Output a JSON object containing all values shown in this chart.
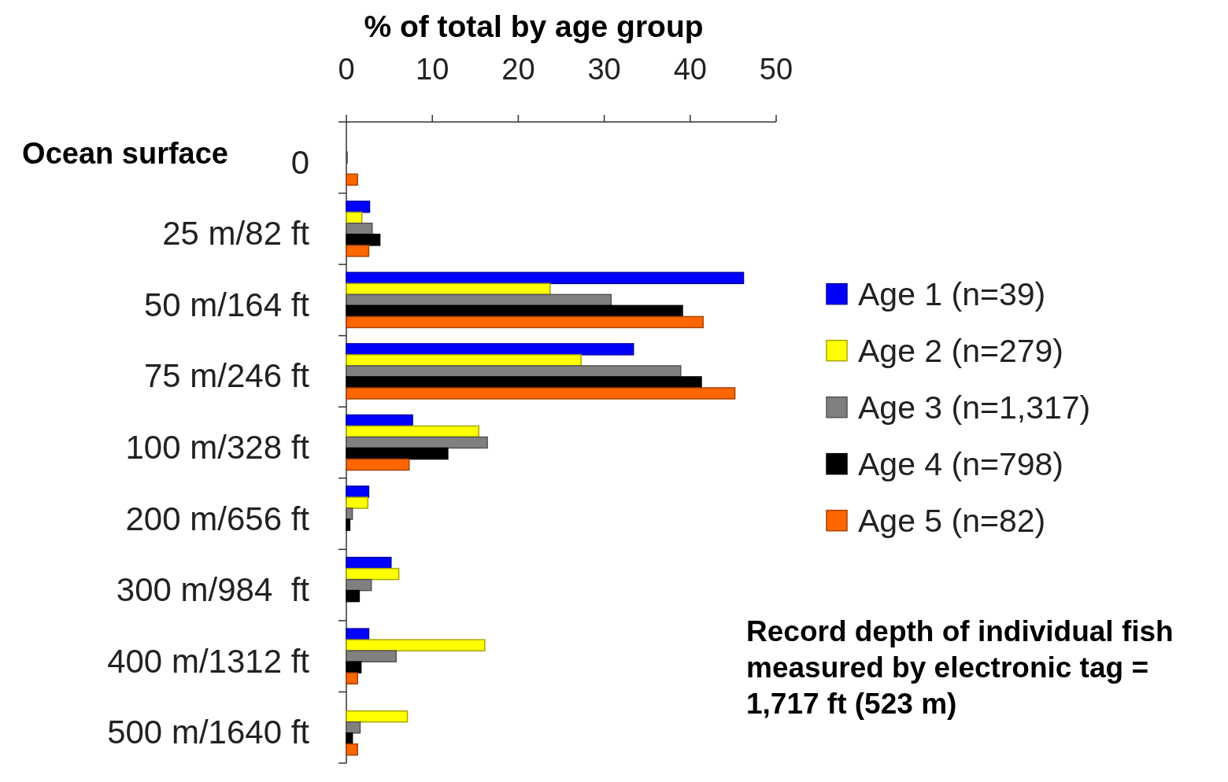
{
  "chart_data": {
    "type": "bar",
    "orientation": "horizontal",
    "xlabel": "% of total by age group",
    "categories": [
      "0",
      "25 m/82 ft",
      "50 m/164 ft",
      "75 m/246 ft",
      "100 m/328 ft",
      "200 m/656 ft",
      "300 m/984  ft",
      "400 m/1312 ft",
      "500 m/1640 ft"
    ],
    "series": [
      {
        "name": "Age 1 (n=39)",
        "color": "#0000ff",
        "values": [
          0,
          2.7,
          46.2,
          33.4,
          7.7,
          2.6,
          5.2,
          2.6,
          0
        ]
      },
      {
        "name": "Age 2 (n=279)",
        "color": "#ffff00",
        "values": [
          0,
          1.8,
          23.7,
          27.3,
          15.4,
          2.5,
          6.1,
          16.1,
          7.1
        ]
      },
      {
        "name": "Age 3 (n=1,317)",
        "color": "#808080",
        "values": [
          0.1,
          3.0,
          30.8,
          38.9,
          16.4,
          0.7,
          2.9,
          5.8,
          1.6
        ]
      },
      {
        "name": "Age 4 (n=798)",
        "color": "#000000",
        "values": [
          0,
          3.9,
          39.1,
          41.3,
          11.8,
          0.4,
          1.5,
          1.7,
          0.7
        ]
      },
      {
        "name": "Age 5 (n=82)",
        "color": "#ff6600",
        "values": [
          1.3,
          2.6,
          41.5,
          45.2,
          7.3,
          0,
          0,
          1.3,
          1.3
        ]
      }
    ],
    "xlim": [
      0,
      50
    ],
    "xticks": [
      0,
      10,
      20,
      30,
      40,
      50
    ],
    "legend": "right",
    "annotations": [
      "Ocean surface",
      "Record depth of individual fish measured by electronic tag = 1,717 ft (523 m)"
    ]
  }
}
